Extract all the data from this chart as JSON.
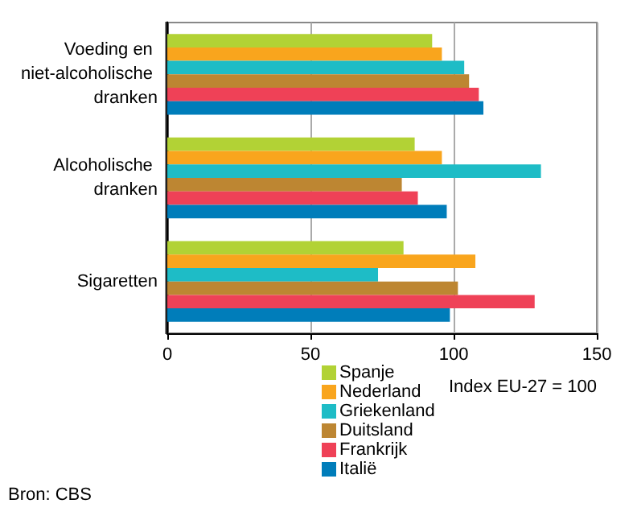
{
  "chart_data": {
    "type": "bar",
    "orientation": "horizontal",
    "categories": [
      "Voeding en niet-alcoholische dranken",
      "Alcoholische dranken",
      "Sigaretten"
    ],
    "series": [
      {
        "name": "Spanje",
        "color": "#b2d235",
        "values": [
          92.5,
          86.4,
          82.5
        ]
      },
      {
        "name": "Nederland",
        "color": "#f9a51d",
        "values": [
          95.9,
          95.9,
          107.6
        ]
      },
      {
        "name": "Griekenland",
        "color": "#1ebcc6",
        "values": [
          103.7,
          130.5,
          73.6
        ]
      },
      {
        "name": "Duitsland",
        "color": "#bd8632",
        "values": [
          105.4,
          81.9,
          101.5
        ]
      },
      {
        "name": "Frankrijk",
        "color": "#ef4157",
        "values": [
          108.8,
          87.5,
          128.3
        ]
      },
      {
        "name": "Italië",
        "color": "#007dba",
        "values": [
          110.4,
          97.6,
          98.7
        ]
      }
    ],
    "xlim": [
      0,
      150
    ],
    "xticks": [
      0,
      50,
      100,
      150
    ],
    "xlabel": "Index EU-27 = 100",
    "grid": "x",
    "legend": "bottom",
    "annotations": [
      "Bron: CBS"
    ]
  }
}
